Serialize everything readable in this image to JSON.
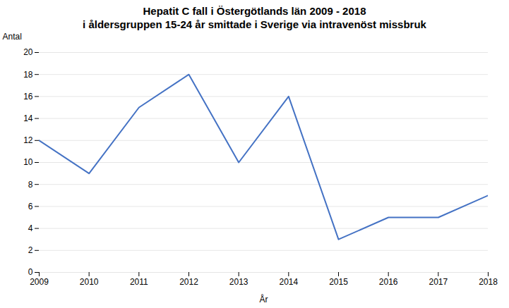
{
  "chart_data": {
    "type": "line",
    "title": "Hepatit C fall i Östergötlands län 2009 - 2018",
    "subtitle": "i åldersgruppen 15-24 år smittade i Sverige via intravenöst missbruk",
    "xlabel": "År",
    "ylabel": "Antal",
    "x": [
      2009,
      2010,
      2011,
      2012,
      2013,
      2014,
      2015,
      2016,
      2017,
      2018
    ],
    "values": [
      12,
      9,
      15,
      18,
      10,
      16,
      3,
      5,
      5,
      7
    ],
    "color": "#4472C4",
    "xlim": [
      2009,
      2018
    ],
    "xticks": [
      2009,
      2010,
      2011,
      2012,
      2013,
      2014,
      2015,
      2016,
      2017,
      2018
    ],
    "ylim": [
      0,
      20
    ],
    "yticks": [
      0,
      2,
      4,
      6,
      8,
      10,
      12,
      14,
      16,
      18,
      20
    ],
    "grid": true
  }
}
